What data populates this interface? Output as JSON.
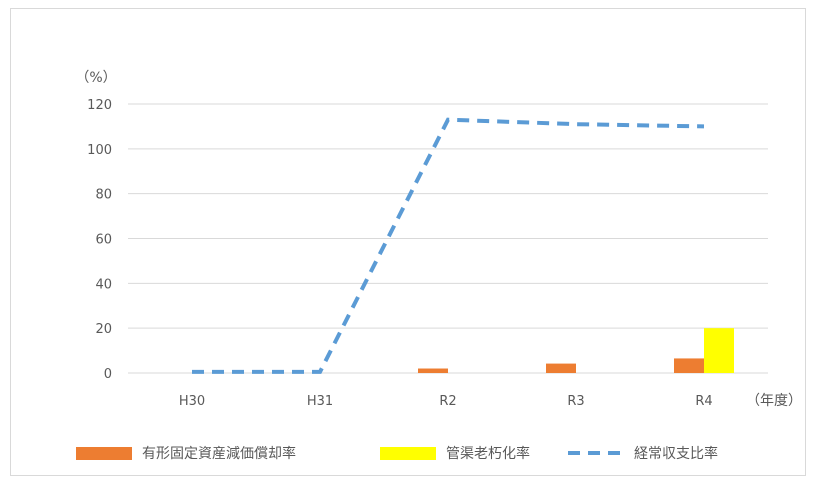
{
  "chart_data": {
    "type": "bar",
    "y_unit": "（%）",
    "x_unit": "（年度）",
    "categories": [
      "H30",
      "H31",
      "R2",
      "R3",
      "R4"
    ],
    "ylim": [
      0,
      120
    ],
    "yticks": [
      0,
      20,
      40,
      60,
      80,
      100,
      120
    ],
    "grid": true,
    "legend_position": "bottom",
    "series": [
      {
        "name": "有形固定資産減価償却率",
        "type": "bar",
        "color": "#ed7d31",
        "values": [
          null,
          null,
          2.0,
          4.2,
          6.5
        ]
      },
      {
        "name": "管渠老朽化率",
        "type": "bar",
        "color": "#ffff00",
        "values": [
          null,
          null,
          null,
          null,
          20.0
        ]
      },
      {
        "name": "経常収支比率",
        "type": "line",
        "style": "dashed",
        "color": "#5b9bd5",
        "values": [
          0.5,
          0.5,
          113.0,
          111.0,
          110.0
        ]
      }
    ]
  }
}
